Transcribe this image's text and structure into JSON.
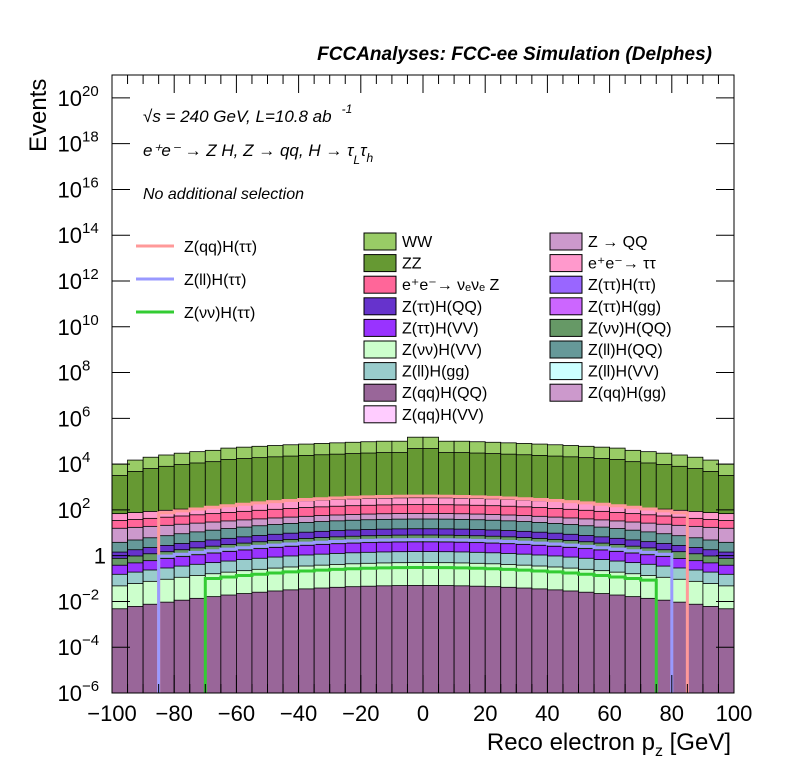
{
  "chart_data": {
    "type": "area",
    "title": "FCCAnalyses: FCC-ee Simulation (Delphes)",
    "xlabel": "Reco electron p",
    "xlabel_sub": "z",
    "xlabel_unit": " [GeV]",
    "ylabel": "Events",
    "xlim": [
      -100,
      100
    ],
    "ylim": [
      1e-06,
      1e+21
    ],
    "y_scale": "log",
    "x_ticks": [
      "−100",
      "−80",
      "−60",
      "−40",
      "−20",
      "0",
      "20",
      "40",
      "60",
      "80",
      "100"
    ],
    "y_ticks": [
      {
        "base": "10",
        "exp": "−6",
        "value": 1e-06
      },
      {
        "base": "10",
        "exp": "−4",
        "value": 0.0001
      },
      {
        "base": "10",
        "exp": "−2",
        "value": 0.01
      },
      {
        "base": "1",
        "exp": "",
        "value": 1
      },
      {
        "base": "10",
        "exp": "2",
        "value": 100.0
      },
      {
        "base": "10",
        "exp": "4",
        "value": 10000.0
      },
      {
        "base": "10",
        "exp": "6",
        "value": 1000000.0
      },
      {
        "base": "10",
        "exp": "8",
        "value": 100000000.0
      },
      {
        "base": "10",
        "exp": "10",
        "value": 10000000000.0
      },
      {
        "base": "10",
        "exp": "12",
        "value": 1000000000000.0
      },
      {
        "base": "10",
        "exp": "14",
        "value": 100000000000000.0
      },
      {
        "base": "10",
        "exp": "16",
        "value": 1e+16
      },
      {
        "base": "10",
        "exp": "18",
        "value": 1e+18
      },
      {
        "base": "10",
        "exp": "20",
        "value": 1e+20
      }
    ],
    "annotations": {
      "energy": "√s = 240 GeV, L=10.8 ab",
      "energy_sup": "-1",
      "process": "e⁺e⁻ → Z H, Z  → qq, H  →  τ",
      "process_sub1": "L",
      "process_tau2": "τ",
      "process_sub2": "h",
      "selection": "No additional selection"
    },
    "legend_position": "top-right",
    "signal_legend_position": "top-left",
    "signals": [
      {
        "name": "Z(qq)H(ττ)",
        "color": "#ff9999"
      },
      {
        "name": "Z(ll)H(ττ)",
        "color": "#9999ff"
      },
      {
        "name": "Z(νν)H(ττ)",
        "color": "#33cc33"
      }
    ],
    "backgrounds": [
      {
        "name": "WW",
        "color": "#99cc66"
      },
      {
        "name": "Z → QQ",
        "color": "#cc99cc"
      },
      {
        "name": "ZZ",
        "color": "#669933"
      },
      {
        "name": "e⁺e⁻→ ττ",
        "color": "#ff99cc"
      },
      {
        "name": "e⁺e⁻→ νₑνₑ Z",
        "color": "#ff6699"
      },
      {
        "name": "Z(ττ)H(ττ)",
        "color": "#9966ff"
      },
      {
        "name": "Z(ττ)H(QQ)",
        "color": "#6633cc"
      },
      {
        "name": "Z(ττ)H(gg)",
        "color": "#cc66ff"
      },
      {
        "name": "Z(ττ)H(VV)",
        "color": "#9933ff"
      },
      {
        "name": "Z(νν)H(QQ)",
        "color": "#669966"
      },
      {
        "name": "Z(νν)H(VV)",
        "color": "#ccffcc"
      },
      {
        "name": "Z(ll)H(QQ)",
        "color": "#669999"
      },
      {
        "name": "Z(ll)H(gg)",
        "color": "#99cccc"
      },
      {
        "name": "Z(ll)H(VV)",
        "color": "#ccffff"
      },
      {
        "name": "Z(qq)H(QQ)",
        "color": "#996699"
      },
      {
        "name": "Z(qq)H(gg)",
        "color": "#cc99cc"
      },
      {
        "name": "Z(qq)H(VV)",
        "color": "#ffccff"
      }
    ],
    "stack_totals_approx": {
      "x_bin_edges": [
        -100,
        -95,
        -90,
        -85,
        -80,
        -75,
        -70,
        -65,
        -60,
        -55,
        -50,
        -45,
        -40,
        -35,
        -30,
        -25,
        -20,
        -15,
        -10,
        -5,
        0,
        5,
        10,
        15,
        20,
        25,
        30,
        35,
        40,
        45,
        50,
        55,
        60,
        65,
        70,
        75,
        80,
        85,
        90,
        95,
        100
      ],
      "ww_top": [
        10000.0,
        15000.0,
        20000.0,
        25000.0,
        30000.0,
        35000.0,
        40000.0,
        50000.0,
        55000.0,
        60000.0,
        65000.0,
        70000.0,
        75000.0,
        80000.0,
        85000.0,
        90000.0,
        95000.0,
        100000.0,
        100000.0,
        150000.0,
        150000.0,
        100000.0,
        100000.0,
        95000.0,
        90000.0,
        85000.0,
        80000.0,
        75000.0,
        70000.0,
        65000.0,
        60000.0,
        55000.0,
        50000.0,
        40000.0,
        35000.0,
        30000.0,
        25000.0,
        20000.0,
        15000.0,
        10000.0
      ]
    }
  }
}
